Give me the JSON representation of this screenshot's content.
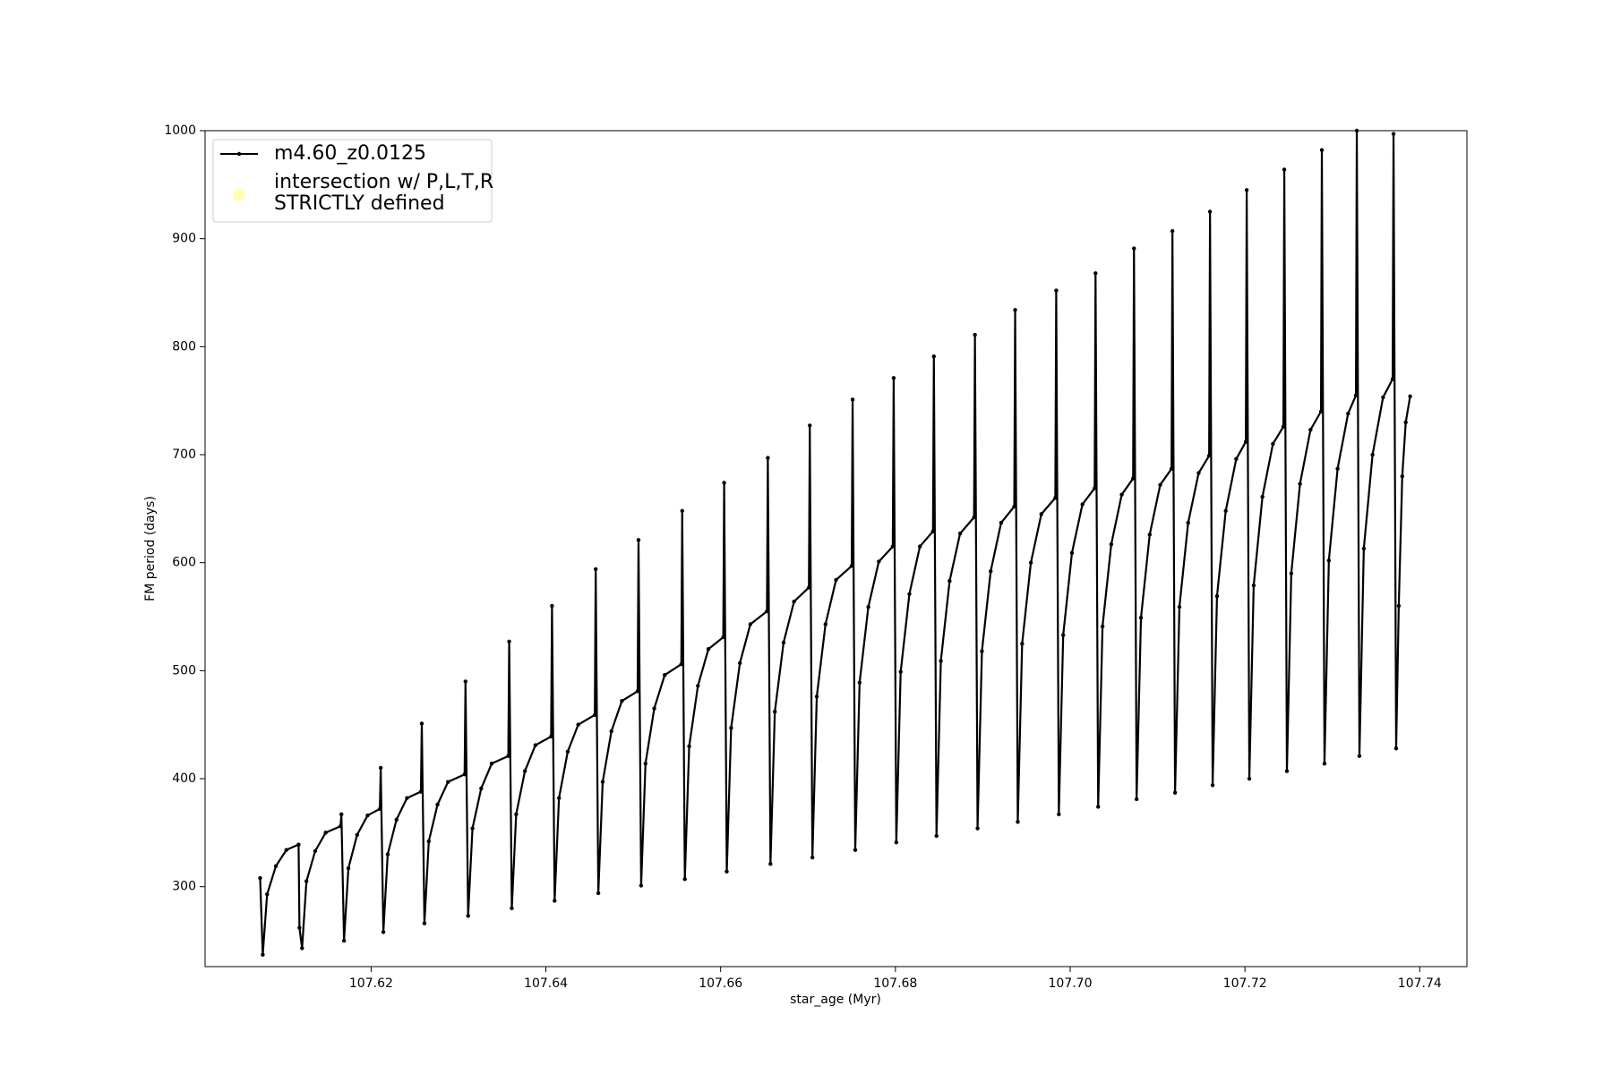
{
  "chart_data": {
    "type": "line",
    "xlabel": "star_age (Myr)",
    "ylabel": "FM period (days)",
    "xlim": [
      107.601,
      107.7454
    ],
    "ylim": [
      226,
      1000
    ],
    "xticks": [
      107.62,
      107.64,
      107.66,
      107.68,
      {
        "value": 107.7,
        "label": "107.70"
      },
      107.72,
      107.74
    ],
    "yticks": [
      300,
      400,
      500,
      600,
      700,
      800,
      900,
      1000
    ],
    "legend": "upper left",
    "series": [
      {
        "name": "m4.60_z0.0125",
        "color": "#000000",
        "x": [
          107.6073,
          107.6076,
          107.6081,
          107.6091,
          107.6103,
          107.6117,
          107.6118,
          107.6121,
          107.6126,
          107.6136,
          107.6148,
          107.6165,
          107.6166,
          107.6169,
          107.6174,
          107.6184,
          107.6196,
          107.621,
          107.6211,
          107.6214,
          107.6219,
          107.6229,
          107.6241,
          107.6257,
          107.6258,
          107.6261,
          107.6266,
          107.6276,
          107.6288,
          107.6307,
          107.6308,
          107.6311,
          107.6316,
          107.6326,
          107.6338,
          107.6357,
          107.6358,
          107.6361,
          107.6366,
          107.6376,
          107.6388,
          107.6406,
          107.6407,
          107.641,
          107.6415,
          107.6425,
          107.6437,
          107.6456,
          107.6457,
          107.646,
          107.6465,
          107.6475,
          107.6487,
          107.6505,
          107.6506,
          107.6509,
          107.6514,
          107.6524,
          107.6536,
          107.6555,
          107.6556,
          107.6559,
          107.6564,
          107.6574,
          107.6586,
          107.6603,
          107.6604,
          107.6607,
          107.6612,
          107.6622,
          107.6634,
          107.6653,
          107.6654,
          107.6657,
          107.6662,
          107.6672,
          107.6684,
          107.6701,
          107.6702,
          107.6705,
          107.671,
          107.672,
          107.6732,
          107.675,
          107.6751,
          107.6754,
          107.6759,
          107.6769,
          107.6781,
          107.6797,
          107.6798,
          107.6801,
          107.6806,
          107.6816,
          107.6828,
          107.6843,
          107.6844,
          107.6847,
          107.6852,
          107.6862,
          107.6874,
          107.689,
          107.6891,
          107.6894,
          107.6899,
          107.6909,
          107.6921,
          107.6936,
          107.6937,
          107.694,
          107.6945,
          107.6955,
          107.6967,
          107.6983,
          107.6984,
          107.6987,
          107.6992,
          107.7002,
          107.7014,
          107.7028,
          107.7029,
          107.7032,
          107.7037,
          107.7047,
          107.7059,
          107.7072,
          107.7073,
          107.7076,
          107.7081,
          107.7091,
          107.7103,
          107.7116,
          107.7117,
          107.712,
          107.7125,
          107.7135,
          107.7147,
          107.7159,
          107.716,
          107.7163,
          107.7168,
          107.7178,
          107.719,
          107.7201,
          107.7202,
          107.7205,
          107.721,
          107.722,
          107.7232,
          107.7244,
          107.7245,
          107.7248,
          107.7253,
          107.7263,
          107.7275,
          107.7287,
          107.7288,
          107.7291,
          107.7296,
          107.7306,
          107.7318,
          107.7327,
          107.7328,
          107.7331,
          107.7336,
          107.7346,
          107.7358,
          107.7369,
          107.737,
          107.7373,
          107.7376,
          107.738,
          107.7384,
          107.7389
        ],
        "values": [
          308,
          237,
          293,
          319,
          334,
          339,
          262,
          243,
          305,
          333,
          350,
          356,
          367,
          250,
          317,
          348,
          366,
          372,
          410,
          258,
          330,
          362,
          382,
          388,
          451,
          266,
          342,
          376,
          397,
          404,
          490,
          273,
          354,
          391,
          414,
          421,
          527,
          280,
          367,
          407,
          431,
          439,
          560,
          287,
          382,
          425,
          450,
          459,
          594,
          294,
          397,
          444,
          472,
          481,
          621,
          301,
          414,
          465,
          496,
          506,
          648,
          307,
          430,
          486,
          520,
          531,
          674,
          314,
          447,
          507,
          543,
          555,
          697,
          321,
          462,
          526,
          564,
          577,
          727,
          327,
          476,
          543,
          584,
          597,
          751,
          334,
          489,
          559,
          601,
          615,
          771,
          341,
          499,
          571,
          615,
          629,
          791,
          347,
          509,
          583,
          627,
          642,
          811,
          354,
          518,
          592,
          637,
          652,
          834,
          360,
          525,
          600,
          645,
          660,
          852,
          367,
          533,
          609,
          654,
          669,
          868,
          374,
          541,
          617,
          663,
          678,
          891,
          381,
          549,
          626,
          672,
          687,
          907,
          387,
          559,
          637,
          683,
          699,
          925,
          394,
          569,
          648,
          696,
          712,
          945,
          400,
          579,
          661,
          710,
          726,
          964,
          407,
          590,
          673,
          723,
          740,
          982,
          414,
          602,
          687,
          738,
          755,
          1000,
          421,
          613,
          700,
          753,
          770,
          997,
          428,
          560,
          680,
          730,
          754
        ]
      },
      {
        "name": "intersection w/ P,L,T,R\nSTRICTLY defined",
        "color": "#ffffb3",
        "type": "scatter",
        "x": [],
        "values": []
      }
    ]
  }
}
